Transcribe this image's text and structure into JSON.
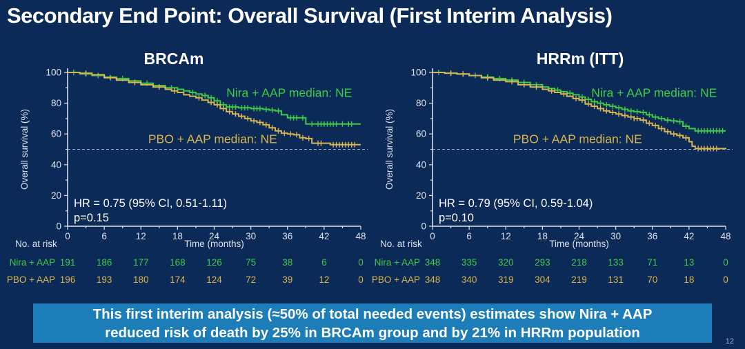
{
  "slide": {
    "title": "Secondary End Point: Overall Survival (First Interim Analysis)",
    "banner_line1": "This first interim analysis (≈50% of total needed events) estimates show Nira + AAP",
    "banner_line2": "reduced risk of death by 25% in BRCAm group and by 21% in HRRm population",
    "page_number": "12"
  },
  "colors": {
    "background": "#0c2a57",
    "banner_background": "#1d7db8",
    "nira_green": "#3ecb44",
    "pbo_gold": "#d8b54e",
    "axis": "#e2e6ee",
    "tick_text": "#dce1ea",
    "reference_line": "#a9b0bd",
    "annotation_text": "#ffffff"
  },
  "chart_data": [
    {
      "type": "line",
      "subtype": "kaplan_meier_step",
      "title": "BRCAm",
      "xlabel": "Time (months)",
      "ylabel": "Overall survival (%)",
      "xlim": [
        0,
        48
      ],
      "ylim": [
        0,
        100
      ],
      "xticks": [
        0,
        6,
        12,
        18,
        24,
        30,
        36,
        42,
        48
      ],
      "yticks": [
        0,
        20,
        40,
        60,
        80,
        100
      ],
      "grid": false,
      "reference_line_y": 50,
      "hr_text": "HR = 0.75 (95% CI, 0.51-1.11)",
      "p_text": "p=0.15",
      "series": [
        {
          "name": "Nira + AAP",
          "label": "Nira + AAP median: NE",
          "color": "#3ecb44",
          "x": [
            0,
            2,
            4,
            6,
            8,
            10,
            12,
            14,
            16,
            18,
            19,
            20,
            21,
            22,
            23,
            24,
            25,
            26,
            28,
            30,
            32,
            33,
            34,
            35,
            36,
            39,
            48
          ],
          "y": [
            100,
            99,
            98,
            97,
            96,
            94.5,
            93,
            91.5,
            90,
            89,
            88,
            87,
            86,
            85,
            83.5,
            81.5,
            79,
            77.5,
            77,
            76.5,
            76,
            75.5,
            75,
            72.5,
            70.5,
            66.5,
            66.5
          ],
          "censor_times": [
            1,
            3,
            5,
            9,
            13,
            17,
            20.5,
            22.5,
            23.5,
            24.5,
            25.5,
            26.5,
            27,
            27.5,
            28.5,
            29,
            29.5,
            30.5,
            31,
            31.5,
            32.5,
            33.5,
            34.5,
            36.5,
            37,
            37.5,
            38.5,
            40,
            41,
            41.5,
            42,
            42.5,
            43,
            43.5,
            44,
            45,
            46,
            46.5
          ]
        },
        {
          "name": "PBO + AAP",
          "label": "PBO + AAP median: NE",
          "color": "#d8b54e",
          "x": [
            0,
            2,
            4,
            6,
            8,
            10,
            12,
            14,
            16,
            17,
            18,
            19,
            20,
            21,
            22,
            23,
            24,
            25,
            26,
            27,
            28,
            29,
            30,
            31,
            32,
            33,
            34,
            35,
            36,
            37,
            38,
            39,
            40,
            43,
            48
          ],
          "y": [
            100,
            99.5,
            98.5,
            96.5,
            95,
            93.5,
            92,
            90.5,
            89,
            88,
            87,
            85.5,
            84.5,
            83.5,
            82,
            80.5,
            79,
            76.5,
            74.5,
            73,
            71.5,
            70,
            68.5,
            67.5,
            66,
            64,
            62,
            60.5,
            60,
            59.5,
            57.5,
            57,
            54,
            53,
            53
          ],
          "censor_times": [
            3,
            7,
            11,
            15,
            17.5,
            21.5,
            23.5,
            24.5,
            25.5,
            26.5,
            27.5,
            28.5,
            29.5,
            30.5,
            31.5,
            32.5,
            33.5,
            34.5,
            35.5,
            36.5,
            37.5,
            38.5,
            39.5,
            41,
            41.5,
            43.5,
            44,
            44.5,
            45,
            45.5,
            46,
            46.5,
            47
          ]
        }
      ],
      "at_risk": {
        "header": "No. at risk",
        "times": [
          0,
          6,
          12,
          18,
          24,
          30,
          36,
          42,
          48
        ],
        "rows": [
          {
            "name": "Nira + AAP",
            "values": [
              191,
              186,
              177,
              168,
              126,
              75,
              38,
              6,
              0
            ]
          },
          {
            "name": "PBO + AAP",
            "values": [
              196,
              193,
              180,
              174,
              124,
              72,
              39,
              12,
              0
            ]
          }
        ]
      }
    },
    {
      "type": "line",
      "subtype": "kaplan_meier_step",
      "title": "HRRm (ITT)",
      "xlabel": "Time (months)",
      "ylabel": "Overall survival (%)",
      "xlim": [
        0,
        48
      ],
      "ylim": [
        0,
        100
      ],
      "xticks": [
        0,
        6,
        12,
        18,
        24,
        30,
        36,
        42,
        48
      ],
      "yticks": [
        0,
        20,
        40,
        60,
        80,
        100
      ],
      "grid": false,
      "reference_line_y": 50,
      "hr_text": "HR = 0.79 (95% CI, 0.59-1.04)",
      "p_text": "p=0.10",
      "series": [
        {
          "name": "Nira + AAP",
          "label": "Nira + AAP median: NE",
          "color": "#3ecb44",
          "x": [
            0,
            2,
            4,
            6,
            8,
            10,
            12,
            14,
            16,
            18,
            19,
            20,
            21,
            22,
            23,
            24,
            25,
            26,
            27,
            28,
            29,
            30,
            31,
            32,
            33,
            34,
            35,
            36,
            37,
            38,
            39,
            40,
            41,
            42,
            43,
            48
          ],
          "y": [
            100,
            99.5,
            99,
            98,
            97,
            96,
            95,
            93.5,
            92,
            90.5,
            89.5,
            88.5,
            87.5,
            86.5,
            85.5,
            84,
            82.5,
            81,
            80,
            79,
            78,
            77,
            76,
            75,
            74.5,
            74,
            72.5,
            71,
            70,
            69,
            68.5,
            68,
            65,
            63.5,
            62,
            62
          ],
          "censor_times": [
            1,
            3,
            5,
            7,
            9,
            11,
            13,
            15,
            17,
            20.5,
            22.5,
            24.5,
            25.5,
            26.5,
            27.5,
            28.5,
            29.5,
            30.5,
            31.5,
            32.5,
            33.5,
            34.5,
            35.5,
            36.5,
            37.5,
            38.5,
            39.5,
            40.5,
            41.5,
            43.5,
            44,
            44.5,
            45,
            45.5,
            46,
            46.5,
            47,
            47.5
          ]
        },
        {
          "name": "PBO + AAP",
          "label": "PBO + AAP median: NE",
          "color": "#d8b54e",
          "x": [
            0,
            2,
            4,
            6,
            8,
            10,
            12,
            14,
            16,
            18,
            19,
            20,
            21,
            22,
            23,
            24,
            25,
            26,
            27,
            28,
            29,
            30,
            31,
            32,
            33,
            34,
            35,
            36,
            37,
            38,
            39,
            40,
            41,
            42,
            42.5,
            43,
            48
          ],
          "y": [
            100,
            99.5,
            99,
            98,
            96.5,
            95,
            94,
            92,
            90.5,
            89,
            88,
            87,
            86,
            84.5,
            83,
            82,
            79.5,
            78,
            76.5,
            75,
            74,
            73,
            72,
            71,
            70,
            69,
            67,
            65.5,
            63.5,
            61.5,
            60,
            59,
            57.5,
            55,
            52,
            50.5,
            50
          ],
          "censor_times": [
            3,
            5,
            9,
            13,
            15,
            17,
            19.5,
            21.5,
            23.5,
            24.5,
            25.5,
            26.5,
            27.5,
            28.5,
            29.5,
            30.5,
            31.5,
            32.5,
            33,
            33.5,
            34.5,
            35.5,
            36.5,
            37.5,
            38.5,
            39.5,
            40.5,
            41.5,
            43.5,
            44,
            44.5,
            45,
            45.5,
            46,
            46.5
          ]
        }
      ],
      "at_risk": {
        "header": "No. at risk",
        "times": [
          0,
          6,
          12,
          18,
          24,
          30,
          36,
          42,
          48
        ],
        "rows": [
          {
            "name": "Nira + AAP",
            "values": [
              348,
              335,
              320,
              293,
              218,
              133,
              71,
              13,
              0
            ]
          },
          {
            "name": "PBO + AAP",
            "values": [
              348,
              340,
              319,
              304,
              219,
              131,
              70,
              18,
              0
            ]
          }
        ]
      }
    }
  ]
}
